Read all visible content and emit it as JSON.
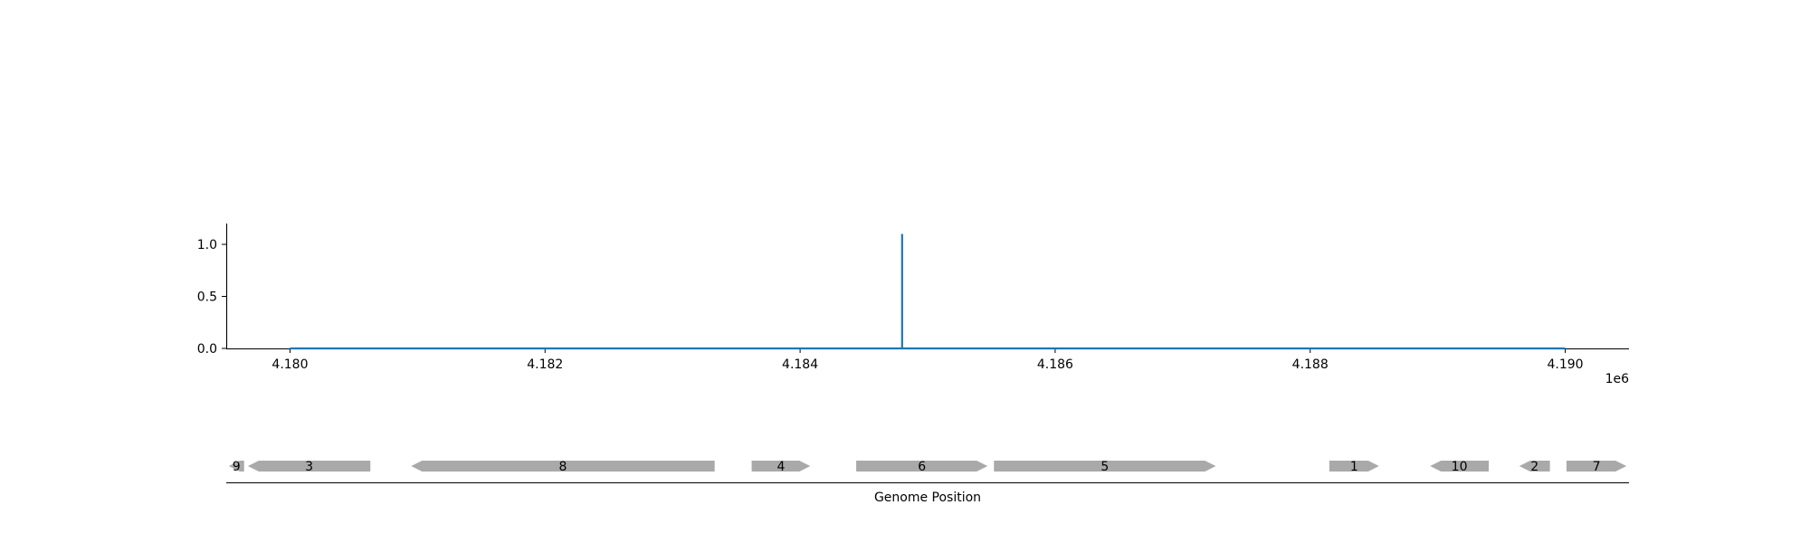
{
  "chart_data": [
    {
      "type": "line",
      "title": "",
      "xlabel": "",
      "ylabel": "",
      "offset_label": "1e6",
      "xlim": [
        4179500,
        4190500
      ],
      "ylim": [
        0,
        1.2
      ],
      "x_ticks": [
        4180000,
        4182000,
        4184000,
        4186000,
        4188000,
        4190000
      ],
      "x_tick_labels": [
        "4.180",
        "4.182",
        "4.184",
        "4.186",
        "4.188",
        "4.190"
      ],
      "y_ticks": [
        0,
        0.5,
        1.0
      ],
      "y_tick_labels": [
        "0.0",
        "0.5",
        "1.0"
      ],
      "grid": false,
      "series": [
        {
          "color": "#1f77b4",
          "x": [
            4180000,
            4184800,
            4184800,
            4184800,
            4190000
          ],
          "y": [
            0,
            0,
            1.1,
            0,
            0
          ]
        }
      ]
    },
    {
      "type": "gene_track",
      "xlabel": "Genome Position",
      "xlim": [
        4179500,
        4190500
      ],
      "gene_color": "#a9a9a9",
      "genes": [
        {
          "label": "9",
          "start": 4179520,
          "end": 4179640,
          "strand": -1
        },
        {
          "label": "3",
          "start": 4179670,
          "end": 4180630,
          "strand": -1
        },
        {
          "label": "8",
          "start": 4180950,
          "end": 4183330,
          "strand": -1
        },
        {
          "label": "4",
          "start": 4183620,
          "end": 4184080,
          "strand": 1
        },
        {
          "label": "6",
          "start": 4184440,
          "end": 4185470,
          "strand": 1
        },
        {
          "label": "5",
          "start": 4185520,
          "end": 4187260,
          "strand": 1
        },
        {
          "label": "1",
          "start": 4188150,
          "end": 4188540,
          "strand": 1
        },
        {
          "label": "10",
          "start": 4188940,
          "end": 4189400,
          "strand": -1
        },
        {
          "label": "2",
          "start": 4189640,
          "end": 4189880,
          "strand": -1
        },
        {
          "label": "7",
          "start": 4190010,
          "end": 4190480,
          "strand": 1
        }
      ]
    }
  ]
}
